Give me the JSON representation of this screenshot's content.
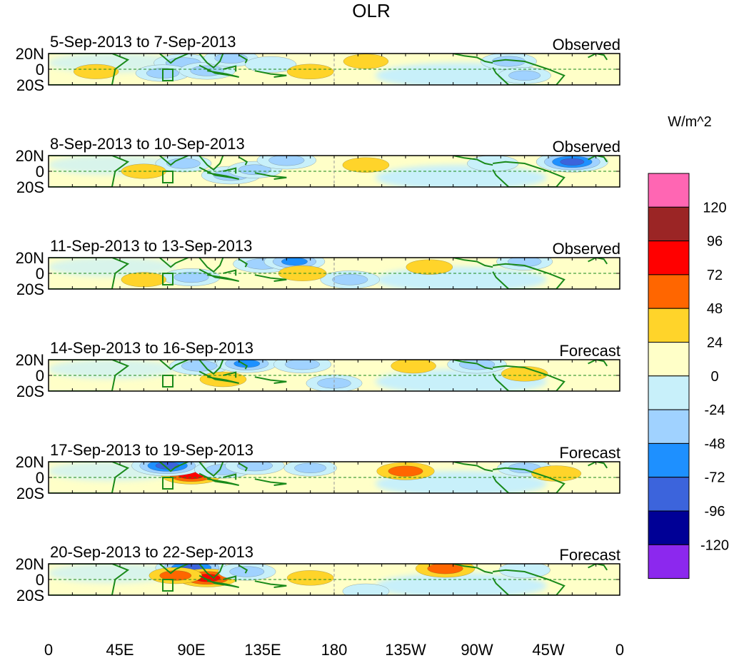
{
  "chart_data": {
    "type": "heatmap",
    "title": "OLR",
    "colorbar": {
      "units": "W/m^2",
      "levels": [
        "120",
        "96",
        "72",
        "48",
        "24",
        "0",
        "-24",
        "-48",
        "-72",
        "-96",
        "-120"
      ],
      "colors": [
        "#ff66b3",
        "#9b2525",
        "#ff0000",
        "#ff6600",
        "#ffd42a",
        "#ffffc8",
        "#c8f0fa",
        "#a0d2ff",
        "#1e90ff",
        "#3c64dc",
        "#000096",
        "#8c28ee"
      ]
    },
    "x_ticks": [
      "0",
      "45E",
      "90E",
      "135E",
      "180",
      "135W",
      "90W",
      "45W",
      "0"
    ],
    "y_ticks": [
      "20N",
      "0",
      "20S"
    ],
    "lon_range": [
      0,
      360
    ],
    "lat_range": [
      -20,
      20
    ],
    "panels": [
      {
        "period": "5-Sep-2013 to 7-Sep-2013",
        "label": "Observed",
        "anomalies": [
          {
            "lon": 85,
            "lat": 8,
            "value": -70
          },
          {
            "lon": 72,
            "lat": -5,
            "value": -55
          },
          {
            "lon": 100,
            "lat": -2,
            "value": -60
          },
          {
            "lon": 115,
            "lat": 14,
            "value": -55
          },
          {
            "lon": 140,
            "lat": 6,
            "value": -45
          },
          {
            "lon": 200,
            "lat": 10,
            "value": 25
          },
          {
            "lon": 165,
            "lat": -3,
            "value": 30
          },
          {
            "lon": 290,
            "lat": 10,
            "value": -60
          },
          {
            "lon": 300,
            "lat": -8,
            "value": -50
          },
          {
            "lon": 30,
            "lat": -3,
            "value": 25
          }
        ]
      },
      {
        "period": "8-Sep-2013 to 10-Sep-2013",
        "label": "Observed",
        "anomalies": [
          {
            "lon": 85,
            "lat": 10,
            "value": -60
          },
          {
            "lon": 115,
            "lat": -5,
            "value": -70
          },
          {
            "lon": 130,
            "lat": 2,
            "value": -55
          },
          {
            "lon": 150,
            "lat": 14,
            "value": -70
          },
          {
            "lon": 200,
            "lat": 8,
            "value": 30
          },
          {
            "lon": 330,
            "lat": 12,
            "value": -110
          },
          {
            "lon": 280,
            "lat": 10,
            "value": -45
          },
          {
            "lon": 60,
            "lat": 0,
            "value": 25
          }
        ]
      },
      {
        "period": "11-Sep-2013 to 13-Sep-2013",
        "label": "Observed",
        "anomalies": [
          {
            "lon": 135,
            "lat": 12,
            "value": -70
          },
          {
            "lon": 155,
            "lat": 15,
            "value": -75
          },
          {
            "lon": 90,
            "lat": -5,
            "value": -65
          },
          {
            "lon": 190,
            "lat": -8,
            "value": -70
          },
          {
            "lon": 240,
            "lat": 8,
            "value": 30
          },
          {
            "lon": 300,
            "lat": 15,
            "value": -60
          },
          {
            "lon": 160,
            "lat": 0,
            "value": 35
          },
          {
            "lon": 60,
            "lat": -8,
            "value": 25
          }
        ]
      },
      {
        "period": "14-Sep-2013 to 16-Sep-2013",
        "label": "Forecast",
        "anomalies": [
          {
            "lon": 95,
            "lat": 12,
            "value": -70
          },
          {
            "lon": 125,
            "lat": 15,
            "value": -75
          },
          {
            "lon": 160,
            "lat": 14,
            "value": -65
          },
          {
            "lon": 270,
            "lat": 14,
            "value": -70
          },
          {
            "lon": 180,
            "lat": -10,
            "value": -60
          },
          {
            "lon": 110,
            "lat": -5,
            "value": 30
          },
          {
            "lon": 300,
            "lat": 2,
            "value": 30
          },
          {
            "lon": 230,
            "lat": 12,
            "value": 25
          }
        ]
      },
      {
        "period": "17-Sep-2013 to 19-Sep-2013",
        "label": "Forecast",
        "anomalies": [
          {
            "lon": 90,
            "lat": 3,
            "value": 75
          },
          {
            "lon": 75,
            "lat": 15,
            "value": -110
          },
          {
            "lon": 110,
            "lat": 10,
            "value": -65
          },
          {
            "lon": 130,
            "lat": 15,
            "value": -70
          },
          {
            "lon": 225,
            "lat": 8,
            "value": 65
          },
          {
            "lon": 165,
            "lat": 12,
            "value": -50
          },
          {
            "lon": 300,
            "lat": 12,
            "value": -55
          },
          {
            "lon": 320,
            "lat": 5,
            "value": 40
          }
        ]
      },
      {
        "period": "20-Sep-2013 to 22-Sep-2013",
        "label": "Forecast",
        "anomalies": [
          {
            "lon": 90,
            "lat": 15,
            "value": -110
          },
          {
            "lon": 100,
            "lat": 2,
            "value": 75
          },
          {
            "lon": 80,
            "lat": 5,
            "value": 50
          },
          {
            "lon": 250,
            "lat": 14,
            "value": 70
          },
          {
            "lon": 125,
            "lat": 10,
            "value": -65
          },
          {
            "lon": 165,
            "lat": 2,
            "value": 30
          },
          {
            "lon": 300,
            "lat": 12,
            "value": -45
          },
          {
            "lon": 200,
            "lat": -15,
            "value": -30
          }
        ]
      }
    ]
  }
}
